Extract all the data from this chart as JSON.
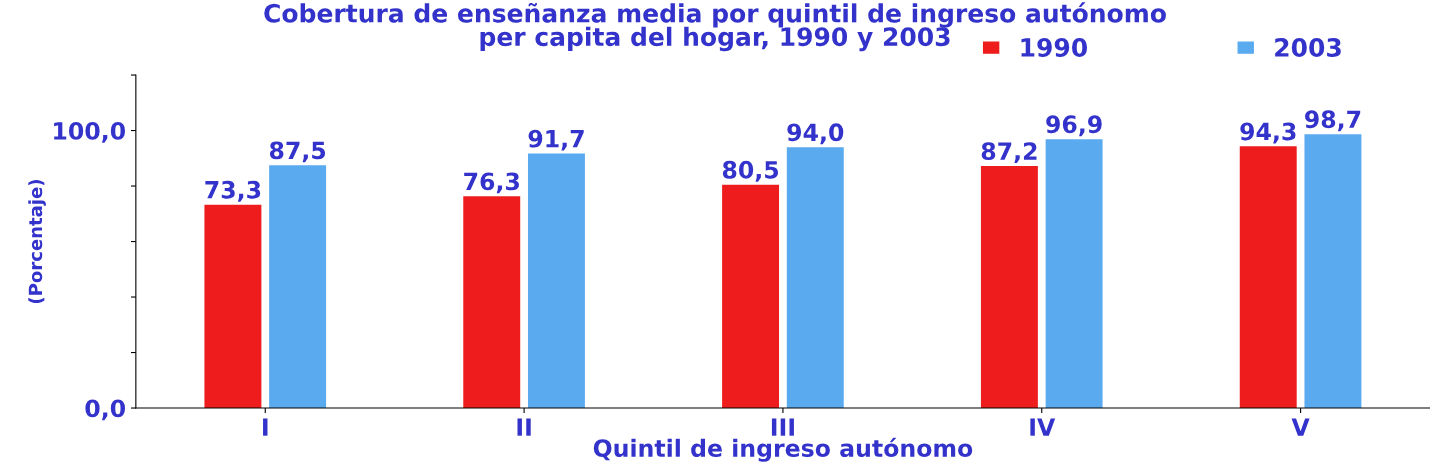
{
  "chart_data": {
    "type": "bar",
    "title": "Cobertura de enseñanza media por quintil de ingreso autónomo\nper capita del hogar, 1990 y 2003",
    "xlabel": "Quintil de ingreso autónomo",
    "ylabel": "(Porcentaje)",
    "categories": [
      "I",
      "II",
      "III",
      "IV",
      "V"
    ],
    "series": [
      {
        "name": "1990",
        "color": "#ee1c1c",
        "values": [
          73.3,
          76.3,
          80.5,
          87.2,
          94.3
        ],
        "value_labels": [
          "73,3",
          "76,3",
          "80,5",
          "87,2",
          "94,3"
        ]
      },
      {
        "name": "2003",
        "color": "#5aaaf0",
        "values": [
          87.5,
          91.7,
          94.0,
          96.9,
          98.7
        ],
        "value_labels": [
          "87,5",
          "91,7",
          "94,0",
          "96,9",
          "98,7"
        ]
      }
    ],
    "ylim": [
      0,
      120
    ],
    "yticks": [
      {
        "value": 0,
        "label": "0,0"
      },
      {
        "value": 20,
        "label": null
      },
      {
        "value": 40,
        "label": null
      },
      {
        "value": 60,
        "label": null
      },
      {
        "value": 80,
        "label": null
      },
      {
        "value": 100,
        "label": "100,0"
      },
      {
        "value": 120,
        "label": null
      }
    ],
    "grid": false,
    "legend": "top right"
  }
}
